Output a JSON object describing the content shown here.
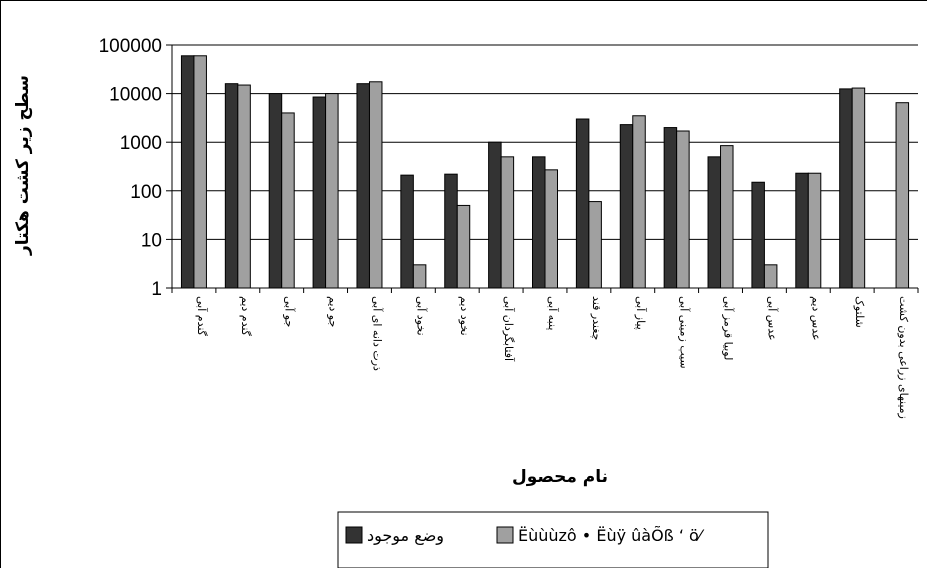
{
  "chart_data": {
    "type": "bar",
    "title": "",
    "xlabel": "نام محصول",
    "ylabel": "سطح زیر کشت هکتار",
    "yscale": "log",
    "ylim": [
      1,
      100000
    ],
    "yticks": [
      "1",
      "10",
      "100",
      "1000",
      "10000",
      "100000"
    ],
    "grid": true,
    "legend_position": "bottom",
    "categories": [
      "گندم آبی",
      "گندم دیم",
      "جو آبی",
      "جو دیم",
      "ذرت دانه ای آبی",
      "نخود آبی",
      "نخود دیم",
      "آفتابگردان آبی",
      "پنبه آبی",
      "چغندر قند",
      "پیاز آبی",
      "سیب زمینی آبی",
      "لوبیا قرمز آبی",
      "عدس آبی",
      "عدس دیم",
      "شلتوک",
      "زمینهای زراعی بدون کشت"
    ],
    "series": [
      {
        "name": "وضع موجود",
        "color": "#333333",
        "values": [
          60000,
          16000,
          10000,
          8500,
          16000,
          210,
          220,
          1000,
          500,
          3000,
          2300,
          2000,
          500,
          150,
          230,
          12500,
          null
        ]
      },
      {
        "name": "Ëùùùzô • Ëùÿ ûàÕß ‘ ö⁄",
        "color": "#a0a0a0",
        "values": [
          60000,
          15000,
          4000,
          10000,
          17500,
          3,
          50,
          500,
          270,
          60,
          3500,
          1700,
          850,
          3,
          230,
          13000,
          6500
        ]
      }
    ]
  }
}
